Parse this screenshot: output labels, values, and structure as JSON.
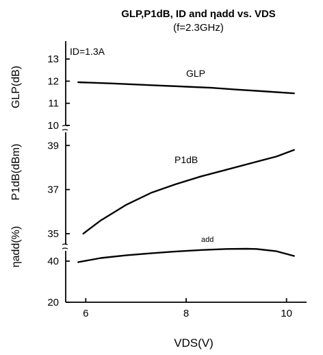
{
  "chart_data": {
    "type": "line",
    "title": "GLP,P1dB, ID and ηadd vs. VDS",
    "subtitle": "(f=2.3GHz)",
    "condition": "ID=1.3A",
    "xlabel": "VDS(V)",
    "xlim": [
      5.6,
      10.4
    ],
    "xticks": [
      6,
      8,
      10
    ],
    "panels": [
      {
        "ylabel": "GLP(dB)",
        "ylim": [
          10,
          13.5
        ],
        "yticks": [
          10,
          11,
          12,
          13
        ],
        "series": [
          {
            "name": "GLP",
            "x": [
              5.85,
              6.5,
              7.0,
              7.5,
              8.0,
              8.5,
              9.0,
              9.5,
              10.15
            ],
            "y": [
              11.95,
              11.9,
              11.85,
              11.8,
              11.75,
              11.7,
              11.62,
              11.55,
              11.45
            ]
          }
        ]
      },
      {
        "ylabel": "P1dB(dBm)",
        "ylim": [
          34.5,
          39.6
        ],
        "yticks": [
          35,
          37,
          39
        ],
        "series": [
          {
            "name": "P1dB",
            "x": [
              5.95,
              6.3,
              6.8,
              7.3,
              7.8,
              8.3,
              8.8,
              9.3,
              9.8,
              10.15
            ],
            "y": [
              35.0,
              35.6,
              36.3,
              36.85,
              37.25,
              37.6,
              37.9,
              38.2,
              38.5,
              38.8
            ]
          }
        ]
      },
      {
        "ylabel": "ηadd(%)",
        "ylim": [
          20,
          45
        ],
        "yticks": [
          20,
          40
        ],
        "series": [
          {
            "name": "add",
            "x": [
              5.85,
              6.3,
              6.8,
              7.3,
              7.8,
              8.3,
              8.8,
              9.2,
              9.4,
              9.8,
              10.15
            ],
            "y": [
              39.5,
              41.5,
              42.8,
              43.8,
              44.7,
              45.4,
              45.9,
              46.0,
              45.9,
              44.8,
              42.5
            ]
          }
        ]
      }
    ],
    "grid": false
  }
}
